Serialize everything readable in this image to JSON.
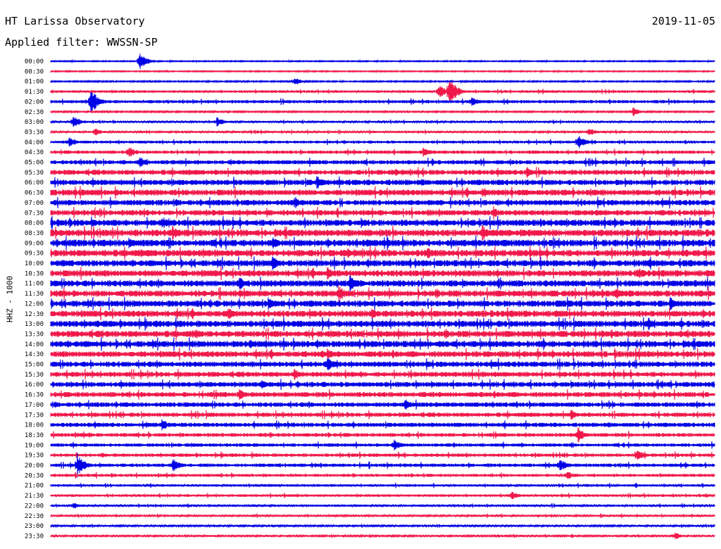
{
  "header": {
    "station": "HT Larissa Observatory",
    "date": "2019-11-05",
    "filter": "Applied filter: WWSSN-SP"
  },
  "chart_data": {
    "type": "line",
    "title": "HT Larissa Observatory",
    "subtitle": "Applied filter: WWSSN-SP",
    "date": "2019-11-05",
    "ylabel": "HHZ - 1000",
    "xlabel": "",
    "x_range_minutes": [
      0,
      30
    ],
    "row_labels": [
      "00:00",
      "00:30",
      "01:00",
      "01:30",
      "02:00",
      "02:30",
      "03:00",
      "03:30",
      "04:00",
      "04:30",
      "05:00",
      "05:30",
      "06:00",
      "06:30",
      "07:00",
      "07:30",
      "08:00",
      "08:30",
      "09:00",
      "09:30",
      "10:00",
      "10:30",
      "11:00",
      "11:30",
      "12:00",
      "12:30",
      "13:00",
      "13:30",
      "14:00",
      "14:30",
      "15:00",
      "15:30",
      "16:00",
      "16:30",
      "17:00",
      "17:30",
      "18:00",
      "18:30",
      "19:00",
      "19:30",
      "20:00",
      "20:30",
      "21:00",
      "21:30",
      "22:00",
      "22:30",
      "23:00",
      "23:30"
    ],
    "colors": [
      "#0000e6",
      "#f0184a"
    ],
    "noise_level": [
      0.5,
      0.5,
      0.6,
      1.2,
      1.5,
      0.7,
      1.0,
      1.0,
      1.3,
      1.6,
      2.0,
      2.4,
      2.6,
      2.8,
      2.6,
      2.6,
      3.0,
      3.2,
      3.2,
      3.2,
      3.0,
      3.0,
      3.0,
      3.0,
      3.0,
      3.0,
      3.0,
      3.0,
      3.0,
      2.8,
      2.6,
      2.4,
      2.4,
      2.4,
      2.2,
      2.0,
      2.0,
      1.8,
      1.6,
      1.6,
      1.6,
      1.4,
      1.2,
      1.2,
      1.1,
      1.0,
      0.9,
      0.9
    ],
    "events": [
      {
        "row": 0,
        "minute": 4.0,
        "amplitude": 14
      },
      {
        "row": 2,
        "minute": 11.0,
        "amplitude": 6
      },
      {
        "row": 3,
        "minute": 17.5,
        "amplitude": 12
      },
      {
        "row": 3,
        "minute": 18.0,
        "amplitude": 22
      },
      {
        "row": 4,
        "minute": 1.8,
        "amplitude": 20
      },
      {
        "row": 4,
        "minute": 19.0,
        "amplitude": 8
      },
      {
        "row": 5,
        "minute": 26.3,
        "amplitude": 7
      },
      {
        "row": 6,
        "minute": 7.5,
        "amplitude": 7
      },
      {
        "row": 6,
        "minute": 1.0,
        "amplitude": 10
      },
      {
        "row": 7,
        "minute": 2.0,
        "amplitude": 6
      },
      {
        "row": 7,
        "minute": 24.3,
        "amplitude": 7
      },
      {
        "row": 8,
        "minute": 0.8,
        "amplitude": 8
      },
      {
        "row": 8,
        "minute": 23.8,
        "amplitude": 12
      },
      {
        "row": 9,
        "minute": 3.5,
        "amplitude": 10
      },
      {
        "row": 9,
        "minute": 16.8,
        "amplitude": 8
      },
      {
        "row": 10,
        "minute": 4.0,
        "amplitude": 9
      },
      {
        "row": 11,
        "minute": 21.5,
        "amplitude": 10
      },
      {
        "row": 12,
        "minute": 12.0,
        "amplitude": 10
      },
      {
        "row": 13,
        "minute": 19.5,
        "amplitude": 9
      },
      {
        "row": 14,
        "minute": 11.0,
        "amplitude": 9
      },
      {
        "row": 15,
        "minute": 20.0,
        "amplitude": 10
      },
      {
        "row": 16,
        "minute": 5.0,
        "amplitude": 11
      },
      {
        "row": 16,
        "minute": 14.0,
        "amplitude": 9
      },
      {
        "row": 17,
        "minute": 5.5,
        "amplitude": 11
      },
      {
        "row": 17,
        "minute": 19.5,
        "amplitude": 12
      },
      {
        "row": 18,
        "minute": 3.5,
        "amplitude": 10
      },
      {
        "row": 18,
        "minute": 10.0,
        "amplitude": 10
      },
      {
        "row": 19,
        "minute": 17.0,
        "amplitude": 10
      },
      {
        "row": 20,
        "minute": 10.0,
        "amplitude": 11
      },
      {
        "row": 20,
        "minute": 27.0,
        "amplitude": 8
      },
      {
        "row": 21,
        "minute": 12.5,
        "amplitude": 10
      },
      {
        "row": 21,
        "minute": 26.5,
        "amplitude": 10
      },
      {
        "row": 22,
        "minute": 8.5,
        "amplitude": 11
      },
      {
        "row": 22,
        "minute": 13.5,
        "amplitude": 12
      },
      {
        "row": 23,
        "minute": 13.0,
        "amplitude": 12
      },
      {
        "row": 23,
        "minute": 25.5,
        "amplitude": 11
      },
      {
        "row": 24,
        "minute": 9.8,
        "amplitude": 10
      },
      {
        "row": 24,
        "minute": 28.0,
        "amplitude": 10
      },
      {
        "row": 25,
        "minute": 8.0,
        "amplitude": 10
      },
      {
        "row": 25,
        "minute": 14.5,
        "amplitude": 9
      },
      {
        "row": 26,
        "minute": 27.0,
        "amplitude": 10
      },
      {
        "row": 27,
        "minute": 6.5,
        "amplitude": 9
      },
      {
        "row": 28,
        "minute": 9.0,
        "amplitude": 8
      },
      {
        "row": 29,
        "minute": 12.5,
        "amplitude": 9
      },
      {
        "row": 30,
        "minute": 12.5,
        "amplitude": 11
      },
      {
        "row": 31,
        "minute": 11.0,
        "amplitude": 9
      },
      {
        "row": 32,
        "minute": 9.5,
        "amplitude": 8
      },
      {
        "row": 33,
        "minute": 8.5,
        "amplitude": 10
      },
      {
        "row": 34,
        "minute": 16.0,
        "amplitude": 9
      },
      {
        "row": 35,
        "minute": 23.5,
        "amplitude": 8
      },
      {
        "row": 36,
        "minute": 5.0,
        "amplitude": 9
      },
      {
        "row": 37,
        "minute": 23.8,
        "amplitude": 12
      },
      {
        "row": 38,
        "minute": 15.5,
        "amplitude": 9
      },
      {
        "row": 39,
        "minute": 26.5,
        "amplitude": 9
      },
      {
        "row": 40,
        "minute": 1.2,
        "amplitude": 18
      },
      {
        "row": 40,
        "minute": 5.5,
        "amplitude": 11
      },
      {
        "row": 40,
        "minute": 23.0,
        "amplitude": 10
      },
      {
        "row": 41,
        "minute": 23.3,
        "amplitude": 8
      },
      {
        "row": 43,
        "minute": 20.8,
        "amplitude": 7
      },
      {
        "row": 44,
        "minute": 1.0,
        "amplitude": 6
      },
      {
        "row": 47,
        "minute": 28.2,
        "amplitude": 6
      }
    ]
  }
}
